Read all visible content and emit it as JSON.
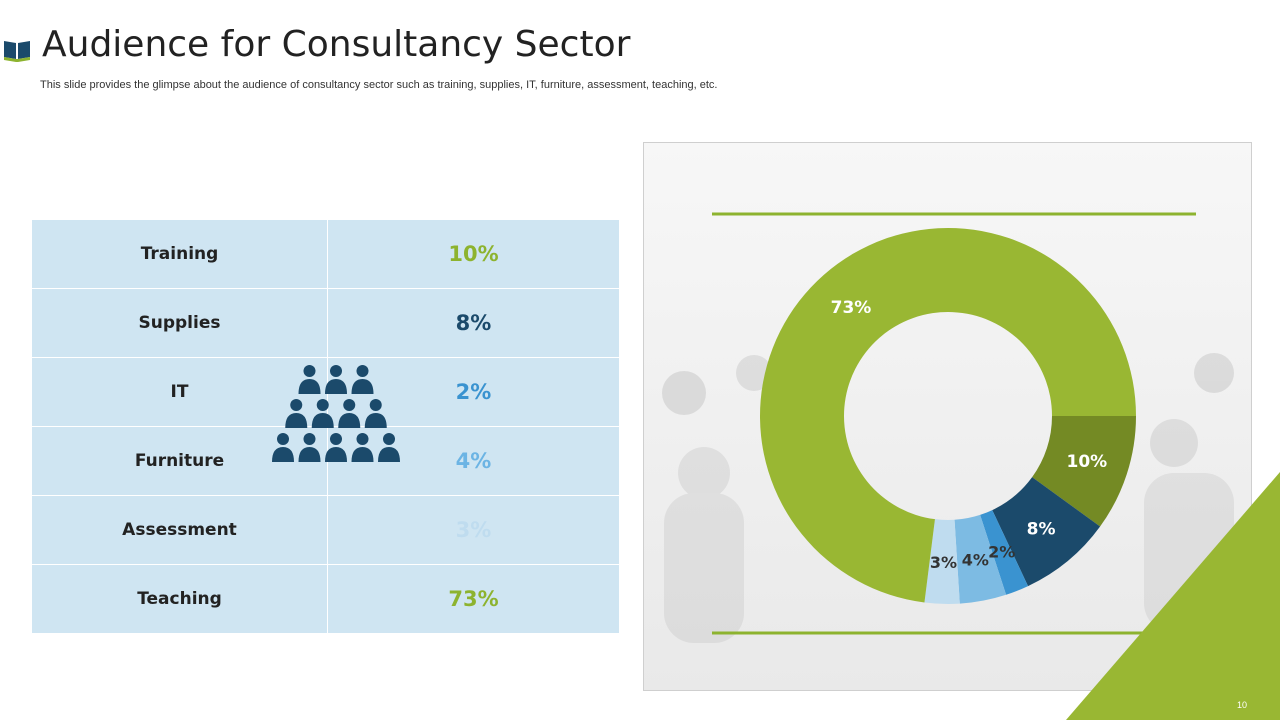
{
  "header": {
    "title": "Audience for Consultancy Sector",
    "subtitle": "This slide provides the glimpse about the audience of consultancy sector such as training, supplies, IT, furniture, assessment, teaching, etc.",
    "icon": "book-icon"
  },
  "table": {
    "rows": [
      {
        "label": "Training",
        "value": "10%",
        "color": "#8db32f"
      },
      {
        "label": "Supplies",
        "value": "8%",
        "color": "#1b4a6b"
      },
      {
        "label": "IT",
        "value": "2%",
        "color": "#3a93d0"
      },
      {
        "label": "Furniture",
        "value": "4%",
        "color": "#6cb4e4"
      },
      {
        "label": "Assessment",
        "value": "3%",
        "color": "#bfdcef"
      },
      {
        "label": "Teaching",
        "value": "73%",
        "color": "#8db32f"
      }
    ]
  },
  "people_icon": "people-group-icon",
  "chart_data": {
    "type": "pie",
    "donut": true,
    "categories": [
      "Training",
      "Supplies",
      "IT",
      "Furniture",
      "Assessment",
      "Teaching"
    ],
    "values": [
      10,
      8,
      2,
      4,
      3,
      73
    ],
    "labels": [
      "10%",
      "8%",
      "2%",
      "4%",
      "3%",
      "73%"
    ],
    "colors": [
      "#748a24",
      "#1b4a6b",
      "#3a93d0",
      "#7dbbe3",
      "#bfdcef",
      "#99b733"
    ],
    "label_colors": [
      "#ffffff",
      "#ffffff",
      "#333333",
      "#333333",
      "#333333",
      "#ffffff"
    ],
    "start_angle_deg": 0,
    "direction": "clockwise",
    "legend": "none"
  },
  "colors": {
    "accent_green": "#99b733",
    "dark_blue": "#1b4a6b",
    "table_bg": "#cfe5f2"
  },
  "footer": {
    "page_number": "10"
  }
}
